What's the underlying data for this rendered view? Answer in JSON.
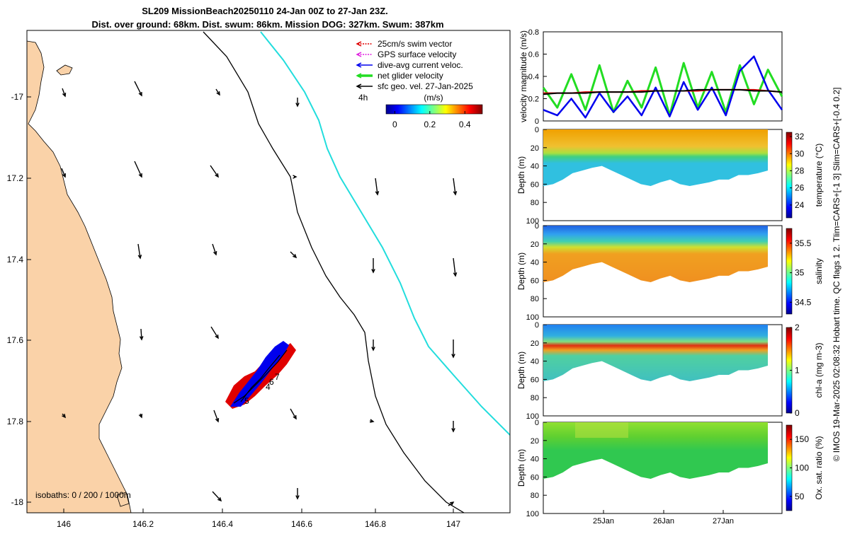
{
  "title": {
    "line1": "SL209 MissionBeach20250110 24-Jan 00Z to 27-Jan 23Z.",
    "line2": "Dist. over ground: 68km. Dist. swum: 86km. Mission DOG: 327km. Swum: 387km"
  },
  "colors": {
    "land": "#fad2a8",
    "swim": "#e00000",
    "gps": "#e020e0",
    "dive": "#0000ee",
    "net": "#22dd22",
    "geo": "#000000",
    "isobath_1000": "#22dddd",
    "isobath_200": "#000000"
  },
  "map": {
    "x_ticks": [
      "146",
      "146.2",
      "146.4",
      "146.6",
      "146.8",
      "147"
    ],
    "y_ticks": [
      "-17",
      "17.2",
      "17.4",
      "17.6",
      "17.8",
      "-18"
    ],
    "isobaths_label": "isobaths: 0 / 200 / 1000m",
    "legend": [
      {
        "label": "25cm/s swim vector",
        "color": "#e00000",
        "style": "dash"
      },
      {
        "label": "GPS surface velocity",
        "color": "#e020e0",
        "style": "dash"
      },
      {
        "label": "dive-avg current veloc.",
        "color": "#0000ee",
        "style": "solid"
      },
      {
        "label": "net glider velocity",
        "color": "#22dd22",
        "style": "thick"
      },
      {
        "label": "sfc geo. vel. 27-Jan-2025",
        "color": "#000000",
        "style": "solid"
      }
    ],
    "colorbar": {
      "unit": "(m/s)",
      "ticks": [
        "0",
        "0.2",
        "0.4"
      ],
      "range": [
        -0.05,
        0.5
      ]
    },
    "time_label": "4h",
    "track_labels": [
      "5",
      "4",
      "6",
      "7"
    ]
  },
  "side_note": "© IMOS 19-Mar-2025 02:08:32 Hobart time. QC flags 1   2. Tlim=CARS+[-1 3] Slim=CARS+[-0.4 0.2]",
  "chart_data": [
    {
      "type": "line",
      "name": "velocity",
      "ylabel": "velocity magnitude (m/s)",
      "ylim": [
        0,
        0.8
      ],
      "y_ticks": [
        "0",
        "0.2",
        "0.4",
        "0.6",
        "0.8"
      ],
      "x": [
        0,
        0.25,
        0.5,
        0.75,
        1,
        1.25,
        1.5,
        1.75,
        2,
        2.25,
        2.5,
        2.75,
        3,
        3.25,
        3.5,
        3.75,
        4,
        4.25
      ],
      "series": [
        {
          "name": "net glider velocity",
          "color": "#22dd22",
          "values": [
            0.3,
            0.12,
            0.42,
            0.1,
            0.5,
            0.08,
            0.36,
            0.12,
            0.48,
            0.05,
            0.52,
            0.12,
            0.44,
            0.08,
            0.5,
            0.15,
            0.46,
            0.22
          ]
        },
        {
          "name": "dive-avg current veloc.",
          "color": "#0000ee",
          "values": [
            0.1,
            0.05,
            0.2,
            0.03,
            0.25,
            0.08,
            0.22,
            0.05,
            0.3,
            0.04,
            0.35,
            0.1,
            0.3,
            0.05,
            0.45,
            0.58,
            0.28,
            0.1
          ]
        },
        {
          "name": "25cm/s swim vector",
          "color": "#e00000",
          "values": [
            0.25,
            0.25,
            0.25,
            0.26,
            0.26,
            0.26,
            0.26,
            0.27,
            0.27,
            0.27,
            0.27,
            0.27,
            0.28,
            0.28,
            0.28,
            0.28,
            0.27,
            0.26
          ]
        },
        {
          "name": "sfc geo. vel.",
          "color": "#000000",
          "values": [
            0.24,
            0.25,
            0.25,
            0.25,
            0.26,
            0.26,
            0.26,
            0.26,
            0.27,
            0.27,
            0.27,
            0.28,
            0.28,
            0.28,
            0.28,
            0.27,
            0.27,
            0.26
          ]
        }
      ]
    },
    {
      "type": "heatmap",
      "name": "temperature",
      "ylabel": "Depth (m)",
      "cbar_label": "temperature (°C)",
      "y_ticks": [
        "0",
        "20",
        "40",
        "60",
        "80",
        "100"
      ],
      "cbar_ticks": [
        "32",
        "30",
        "28",
        "26",
        "24"
      ],
      "cbar_range": [
        22.5,
        32.5
      ]
    },
    {
      "type": "heatmap",
      "name": "salinity",
      "ylabel": "Depth (m)",
      "cbar_label": "salinity",
      "y_ticks": [
        "0",
        "20",
        "40",
        "60",
        "80",
        "100"
      ],
      "cbar_ticks": [
        "35.5",
        "35",
        "34.5"
      ],
      "cbar_range": [
        34.3,
        35.75
      ]
    },
    {
      "type": "heatmap",
      "name": "chl-a",
      "ylabel": "Depth (m)",
      "cbar_label": "chl-a (mg m-3)",
      "y_ticks": [
        "0",
        "20",
        "40",
        "60",
        "80",
        "100"
      ],
      "cbar_ticks": [
        "2",
        "1",
        "0"
      ],
      "cbar_range": [
        0,
        2
      ]
    },
    {
      "type": "heatmap",
      "name": "oxygen",
      "ylabel": "Depth (m)",
      "cbar_label": "Ox. sat. ratio (%)",
      "y_ticks": [
        "0",
        "20",
        "40",
        "60",
        "80",
        "100"
      ],
      "cbar_ticks": [
        "150",
        "100",
        "50"
      ],
      "cbar_range": [
        25,
        175
      ],
      "x_ticks": [
        "25Jan",
        "26Jan",
        "27Jan"
      ]
    }
  ]
}
